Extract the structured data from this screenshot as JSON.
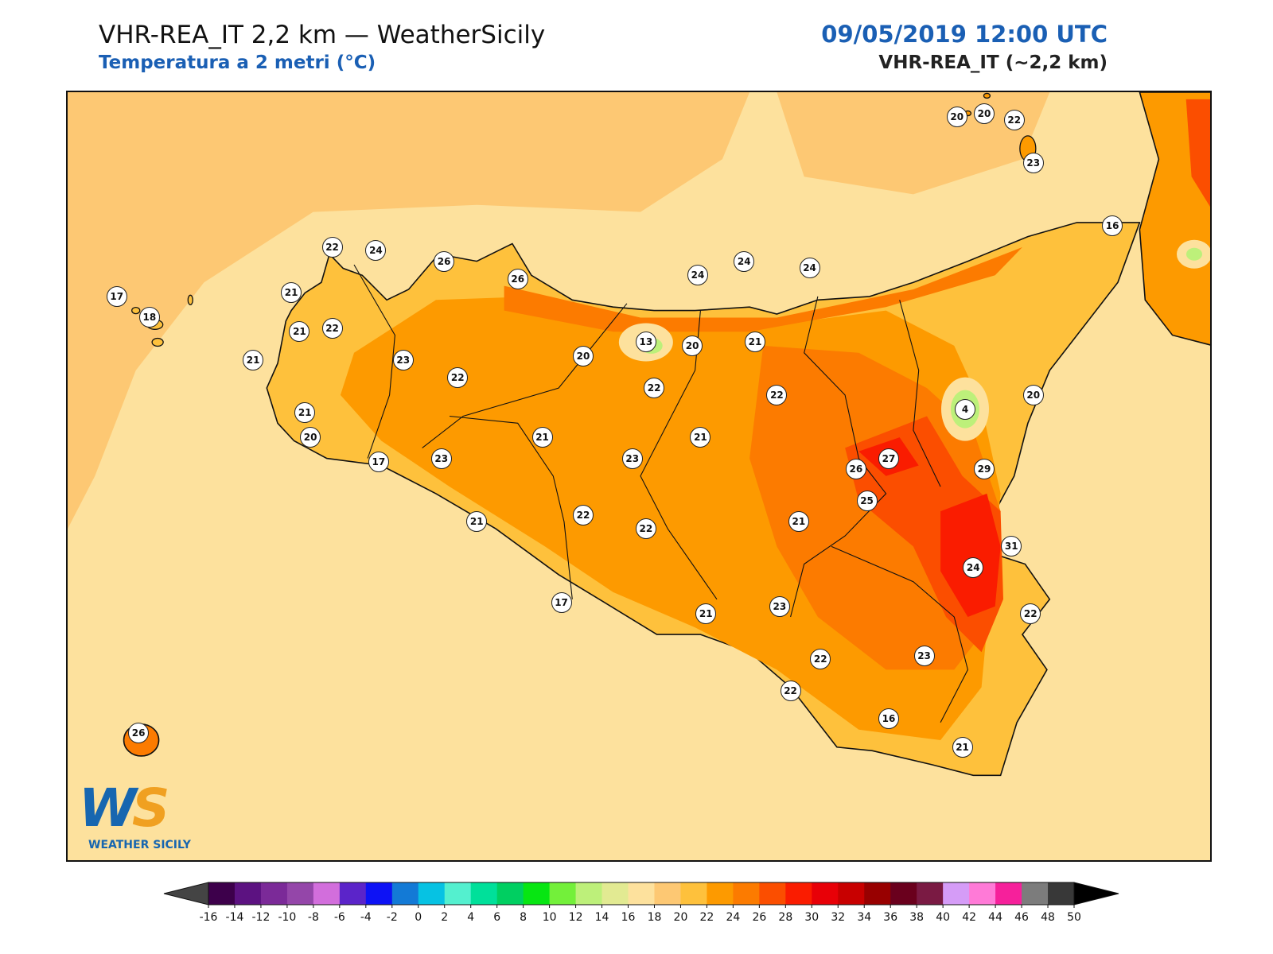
{
  "header": {
    "title": "VHR-REA_IT 2,2 km — WeatherSicily",
    "subtitle": "Temperatura a 2 metri (°C)",
    "datetime": "09/05/2019 12:00 UTC",
    "model": "VHR-REA_IT (~2,2 km)"
  },
  "logo": {
    "text": "WEATHER SICILY",
    "letters": "WS"
  },
  "stations": [
    {
      "value": "20",
      "lon": 14.96,
      "lat": 38.57
    },
    {
      "value": "20",
      "lon": 15.06,
      "lat": 38.58
    },
    {
      "value": "22",
      "lon": 15.17,
      "lat": 38.56
    },
    {
      "value": "23",
      "lon": 15.24,
      "lat": 38.44
    },
    {
      "value": "16",
      "lon": 15.53,
      "lat": 38.26
    },
    {
      "value": "22",
      "lon": 12.67,
      "lat": 38.2
    },
    {
      "value": "24",
      "lon": 12.83,
      "lat": 38.19
    },
    {
      "value": "26",
      "lon": 13.08,
      "lat": 38.16
    },
    {
      "value": "26",
      "lon": 13.35,
      "lat": 38.11
    },
    {
      "value": "24",
      "lon": 14.01,
      "lat": 38.12
    },
    {
      "value": "24",
      "lon": 14.18,
      "lat": 38.16
    },
    {
      "value": "24",
      "lon": 14.42,
      "lat": 38.14
    },
    {
      "value": "17",
      "lon": 11.88,
      "lat": 38.06
    },
    {
      "value": "21",
      "lon": 12.52,
      "lat": 38.07
    },
    {
      "value": "18",
      "lon": 12.0,
      "lat": 38.0
    },
    {
      "value": "22",
      "lon": 12.67,
      "lat": 37.97
    },
    {
      "value": "21",
      "lon": 12.55,
      "lat": 37.96
    },
    {
      "value": "13",
      "lon": 13.82,
      "lat": 37.93
    },
    {
      "value": "20",
      "lon": 13.99,
      "lat": 37.92
    },
    {
      "value": "21",
      "lon": 14.22,
      "lat": 37.93
    },
    {
      "value": "21",
      "lon": 12.38,
      "lat": 37.88
    },
    {
      "value": "23",
      "lon": 12.93,
      "lat": 37.88
    },
    {
      "value": "20",
      "lon": 13.59,
      "lat": 37.89
    },
    {
      "value": "4",
      "lon": 14.99,
      "lat": 37.74
    },
    {
      "value": "20",
      "lon": 15.24,
      "lat": 37.78
    },
    {
      "value": "22",
      "lon": 13.13,
      "lat": 37.83
    },
    {
      "value": "22",
      "lon": 13.85,
      "lat": 37.8
    },
    {
      "value": "22",
      "lon": 14.3,
      "lat": 37.78
    },
    {
      "value": "21",
      "lon": 12.57,
      "lat": 37.73
    },
    {
      "value": "20",
      "lon": 12.59,
      "lat": 37.66
    },
    {
      "value": "21",
      "lon": 13.44,
      "lat": 37.66
    },
    {
      "value": "21",
      "lon": 14.02,
      "lat": 37.66
    },
    {
      "value": "27",
      "lon": 14.71,
      "lat": 37.6
    },
    {
      "value": "17",
      "lon": 12.84,
      "lat": 37.59
    },
    {
      "value": "23",
      "lon": 13.07,
      "lat": 37.6
    },
    {
      "value": "23",
      "lon": 13.77,
      "lat": 37.6
    },
    {
      "value": "26",
      "lon": 14.59,
      "lat": 37.57
    },
    {
      "value": "29",
      "lon": 15.06,
      "lat": 37.57
    },
    {
      "value": "25",
      "lon": 14.63,
      "lat": 37.48
    },
    {
      "value": "21",
      "lon": 13.2,
      "lat": 37.42
    },
    {
      "value": "22",
      "lon": 13.59,
      "lat": 37.44
    },
    {
      "value": "21",
      "lon": 14.38,
      "lat": 37.42
    },
    {
      "value": "22",
      "lon": 13.82,
      "lat": 37.4
    },
    {
      "value": "31",
      "lon": 15.16,
      "lat": 37.35
    },
    {
      "value": "24",
      "lon": 15.02,
      "lat": 37.29
    },
    {
      "value": "17",
      "lon": 13.51,
      "lat": 37.19
    },
    {
      "value": "21",
      "lon": 14.04,
      "lat": 37.16
    },
    {
      "value": "23",
      "lon": 14.31,
      "lat": 37.18
    },
    {
      "value": "22",
      "lon": 15.23,
      "lat": 37.16
    },
    {
      "value": "22",
      "lon": 14.46,
      "lat": 37.03
    },
    {
      "value": "23",
      "lon": 14.84,
      "lat": 37.04
    },
    {
      "value": "26",
      "lon": 11.96,
      "lat": 36.82
    },
    {
      "value": "22",
      "lon": 14.35,
      "lat": 36.94
    },
    {
      "value": "16",
      "lon": 14.71,
      "lat": 36.86
    },
    {
      "value": "21",
      "lon": 14.98,
      "lat": 36.78
    }
  ],
  "colorbar": {
    "min": -16,
    "max": 50,
    "step": 2,
    "tick_labels": [
      "-16",
      "-14",
      "-12",
      "-10",
      "-8",
      "-6",
      "-4",
      "-2",
      "0",
      "2",
      "4",
      "6",
      "8",
      "10",
      "12",
      "14",
      "16",
      "18",
      "20",
      "22",
      "24",
      "26",
      "28",
      "30",
      "32",
      "34",
      "36",
      "38",
      "40",
      "42",
      "44",
      "46",
      "48",
      "50"
    ],
    "colors": [
      "#3d004b",
      "#5c1281",
      "#7b2a98",
      "#9446a9",
      "#d26edc",
      "#5b24c9",
      "#0d12f5",
      "#137ad6",
      "#06c2e3",
      "#54f0cf",
      "#00e09a",
      "#00cf61",
      "#07e612",
      "#73f03a",
      "#bdf07a",
      "#e2ea92",
      "#fde19d",
      "#fdc873",
      "#fec13c",
      "#fd9a00",
      "#fc7b00",
      "#fb4e00",
      "#fa1c00",
      "#e80007",
      "#c80000",
      "#980000",
      "#6a001d",
      "#7a1a43",
      "#d59cf7",
      "#ff7ad7",
      "#f6209b",
      "#7c7c7c",
      "#383838"
    ]
  },
  "temperature_fields": [
    {
      "level": "20",
      "color": "#fdc873",
      "area": "Tyrrhenian sea"
    },
    {
      "level": "22",
      "color": "#fec13c",
      "area": "Sicily west & north"
    },
    {
      "level": "24",
      "color": "#fd9a00",
      "area": "Sicily interior"
    },
    {
      "level": "26",
      "color": "#fc7b00",
      "area": "Sicily interior east"
    },
    {
      "level": "28",
      "color": "#fb4e00",
      "area": "Simeto / Catania plain"
    },
    {
      "level": "30",
      "color": "#fa1c00",
      "area": "Catania plain"
    },
    {
      "level": "6",
      "color": "#00e09a",
      "area": "Etna summit"
    },
    {
      "level": "14",
      "color": "#bdf07a",
      "area": "Madonie summit"
    }
  ]
}
